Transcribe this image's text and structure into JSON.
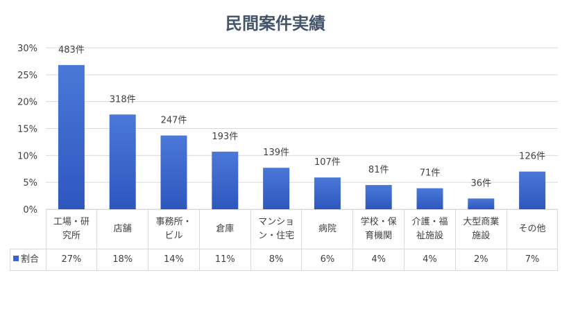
{
  "chart_data": {
    "type": "bar",
    "title": "民間案件実績",
    "categories": [
      "工場・研究所",
      "店舗",
      "事務所・ビル",
      "倉庫",
      "マンション・住宅",
      "病院",
      "学校・保育機関",
      "介護・福祉施設",
      "大型商業施設",
      "その他"
    ],
    "series": [
      {
        "name": "割合",
        "values": [
          27,
          18,
          14,
          11,
          8,
          6,
          4,
          4,
          2,
          7
        ]
      }
    ],
    "bar_values_precise": [
      26.8,
      17.6,
      13.7,
      10.7,
      7.7,
      5.9,
      4.5,
      3.9,
      2.0,
      7.0
    ],
    "data_labels": [
      "483件",
      "318件",
      "247件",
      "193件",
      "139件",
      "107件",
      "81件",
      "71件",
      "36件",
      "126件"
    ],
    "table_values": [
      "27%",
      "18%",
      "14%",
      "11%",
      "8%",
      "6%",
      "4%",
      "4%",
      "2%",
      "7%"
    ],
    "yticks": [
      "0%",
      "5%",
      "10%",
      "15%",
      "20%",
      "25%",
      "30%"
    ],
    "ylim": [
      0,
      30
    ],
    "xlabel": "",
    "ylabel": "",
    "grid": true,
    "legend": "data-table",
    "colors": {
      "bar_top": "#4a78d8",
      "bar_bottom": "#2e57be",
      "grid": "#d9d9d9"
    }
  }
}
